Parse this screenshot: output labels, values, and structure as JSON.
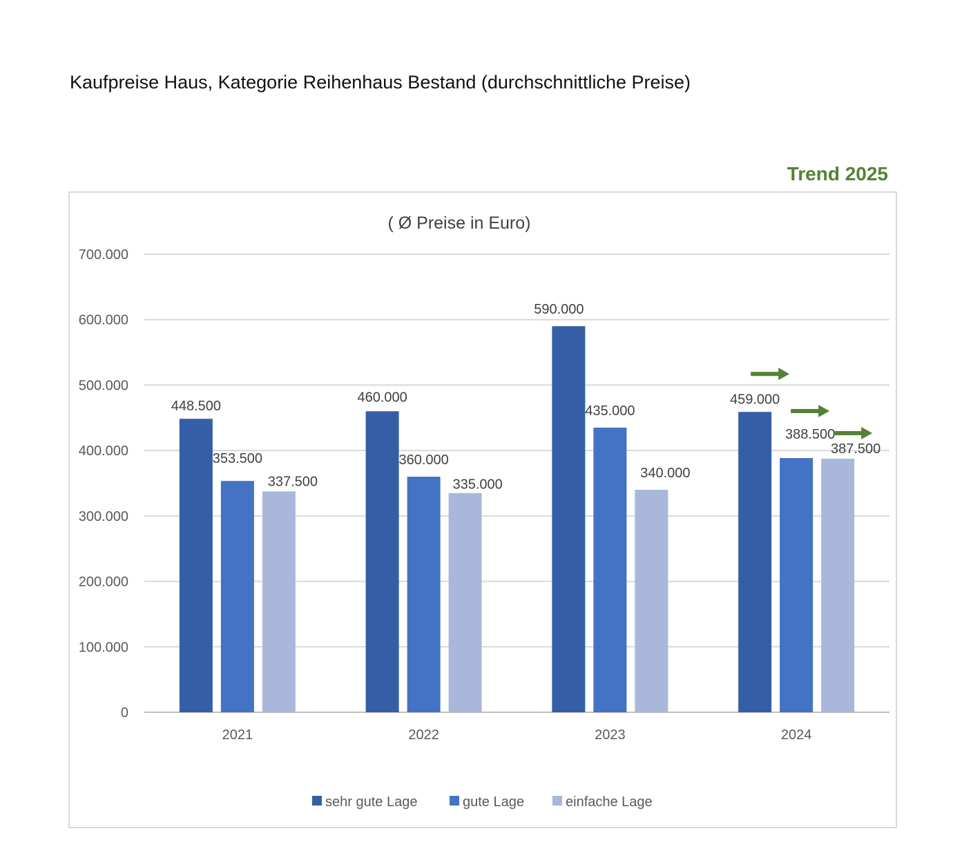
{
  "page": {
    "title": "Kaufpreise Haus, Kategorie Reihenhaus Bestand (durchschnittliche Preise)",
    "trend_label": "Trend 2025"
  },
  "chart_data": {
    "type": "bar",
    "title": "( Ø Preise in Euro)",
    "categories": [
      "2021",
      "2022",
      "2023",
      "2024"
    ],
    "series": [
      {
        "name": "sehr gute Lage",
        "color": "#355ea6",
        "values": [
          448500,
          460000,
          590000,
          459000
        ],
        "labels": [
          "448.500",
          "460.000",
          "590.000",
          "459.000"
        ]
      },
      {
        "name": "gute Lage",
        "color": "#4472c4",
        "values": [
          353500,
          360000,
          435000,
          388500
        ],
        "labels": [
          "353.500",
          "360.000",
          "435.000",
          "388.500"
        ]
      },
      {
        "name": "einfache Lage",
        "color": "#a9b7da",
        "values": [
          337500,
          335000,
          340000,
          387500
        ],
        "labels": [
          "337.500",
          "335.000",
          "340.000",
          "387.500"
        ]
      }
    ],
    "ylim": [
      0,
      700000
    ],
    "yticks": [
      "0",
      "100.000",
      "200.000",
      "300.000",
      "400.000",
      "500.000",
      "600.000",
      "700.000"
    ],
    "grid": true,
    "legend_position": "bottom",
    "trend_arrows": {
      "color": "#548235",
      "category": "2024"
    }
  }
}
